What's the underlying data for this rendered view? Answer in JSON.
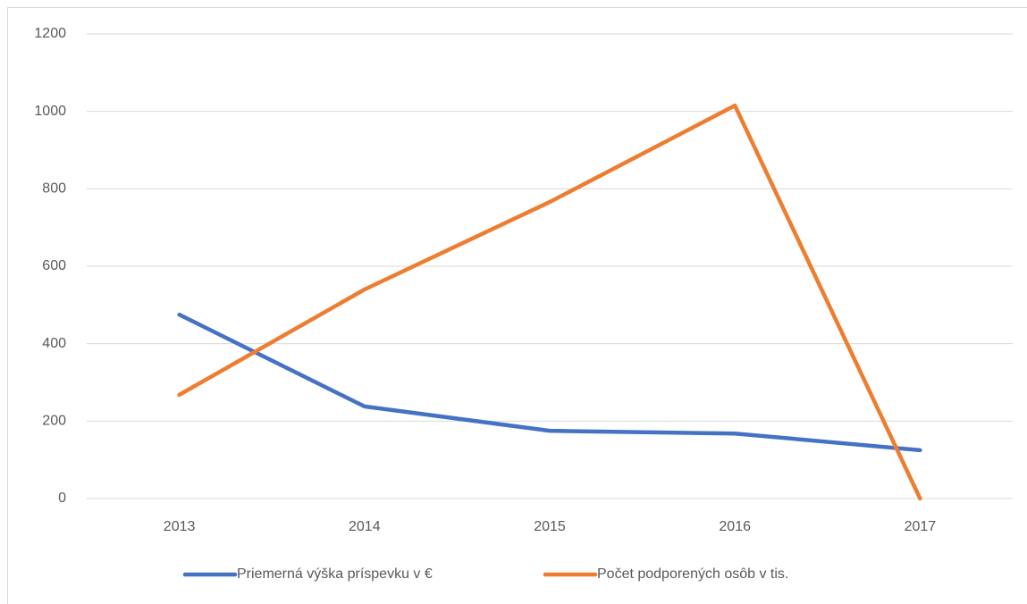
{
  "chart_data": {
    "type": "line",
    "categories": [
      "2013",
      "2014",
      "2015",
      "2016",
      "2017"
    ],
    "series": [
      {
        "name": "Priemerná výška príspevku v €",
        "color": "#4472c4",
        "values": [
          475,
          238,
          175,
          168,
          125
        ]
      },
      {
        "name": "Počet podporených osôb v tis.",
        "color": "#ed7d31",
        "values": [
          268,
          540,
          766,
          1015,
          0
        ]
      }
    ],
    "ylim": [
      0,
      1200
    ],
    "yticks": [
      0,
      200,
      400,
      600,
      800,
      1000,
      1200
    ],
    "grid": true,
    "legend": "bottom"
  }
}
